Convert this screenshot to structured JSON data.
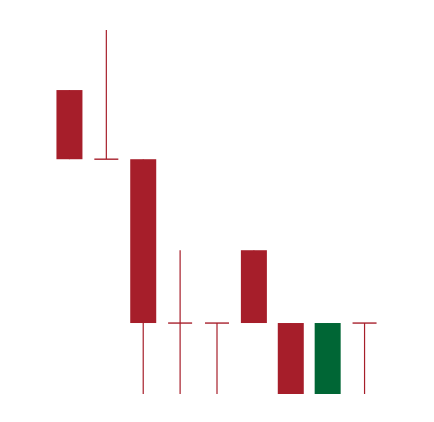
{
  "chart_data": {
    "type": "candlestick",
    "title": "",
    "xlabel": "",
    "ylabel": "",
    "grid": false,
    "legend": "none",
    "ylim": [
      0,
      10
    ],
    "colors": {
      "bearish": "#a61e2a",
      "bullish": "#006635",
      "wick": "#a61e2a"
    },
    "candles": [
      {
        "open": 8.35,
        "high": 8.35,
        "low": 6.45,
        "close": 6.45,
        "direction": "down"
      },
      {
        "open": 6.45,
        "high": 10.0,
        "low": 6.45,
        "close": 6.45,
        "direction": "doji"
      },
      {
        "open": 6.45,
        "high": 6.45,
        "low": 0.0,
        "close": 1.95,
        "direction": "down"
      },
      {
        "open": 1.95,
        "high": 3.95,
        "low": 0.0,
        "close": 1.95,
        "direction": "doji"
      },
      {
        "open": 1.95,
        "high": 1.95,
        "low": 0.0,
        "close": 1.95,
        "direction": "doji"
      },
      {
        "open": 3.95,
        "high": 3.95,
        "low": 1.95,
        "close": 1.95,
        "direction": "down"
      },
      {
        "open": 1.95,
        "high": 1.95,
        "low": 0.0,
        "close": 0.0,
        "direction": "down"
      },
      {
        "open": 0.0,
        "high": 1.95,
        "low": 0.0,
        "close": 1.95,
        "direction": "up"
      },
      {
        "open": 1.95,
        "high": 1.95,
        "low": 0.0,
        "close": 1.95,
        "direction": "doji"
      }
    ]
  }
}
